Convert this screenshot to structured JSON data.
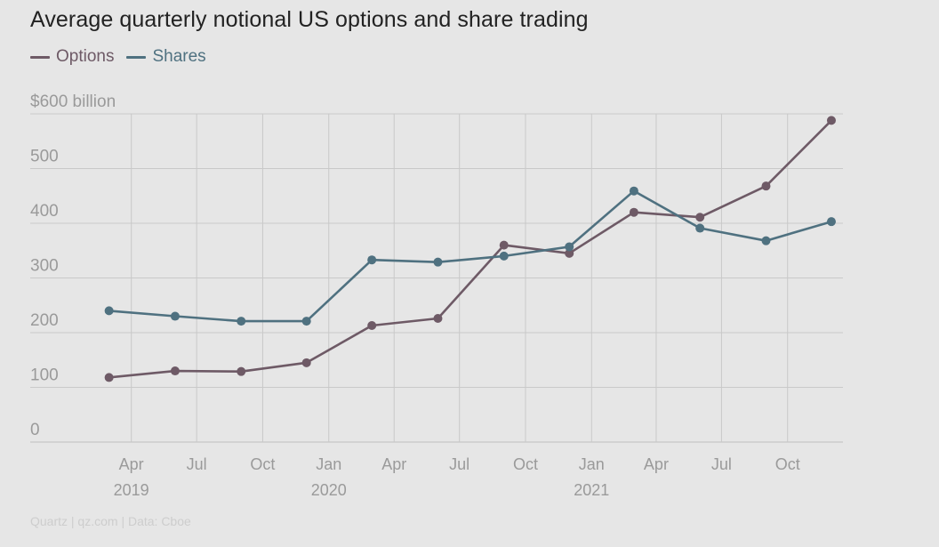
{
  "title": "Average quarterly notional US options and share trading",
  "colors": {
    "options": "#6e5a66",
    "shares": "#4f7180",
    "grid": "#c9c9c9",
    "axis_text": "#9a9a9a"
  },
  "legend": [
    {
      "label": "Options",
      "color": "#6e5a66"
    },
    {
      "label": "Shares",
      "color": "#4f7180"
    }
  ],
  "source": "Quartz | qz.com | Data: Cboe",
  "chart_data": {
    "type": "line",
    "title": "Average quarterly notional US options and share trading",
    "ylabel": "",
    "y_unit_label": "$600 billion",
    "ylim": [
      0,
      600
    ],
    "yticks": [
      0,
      100,
      200,
      300,
      400,
      500,
      600
    ],
    "ytick_labels": [
      "0",
      "100",
      "200",
      "300",
      "400",
      "500",
      "$600 billion"
    ],
    "xlim": [
      "2019-01-01",
      "2022-01-01"
    ],
    "xticks": [
      "2019-04-01",
      "2019-07-01",
      "2019-10-01",
      "2020-01-01",
      "2020-04-01",
      "2020-07-01",
      "2020-10-01",
      "2021-01-01",
      "2021-04-01",
      "2021-07-01",
      "2021-10-01"
    ],
    "xtick_labels": [
      "Apr",
      "Jul",
      "Oct",
      "Jan",
      "Apr",
      "Jul",
      "Oct",
      "Jan",
      "Apr",
      "Jul",
      "Oct"
    ],
    "year_labels": [
      {
        "label": "2019",
        "date": "2019-04-01"
      },
      {
        "label": "2020",
        "date": "2020-01-01"
      },
      {
        "label": "2021",
        "date": "2021-01-01"
      }
    ],
    "x": [
      "2019-03-01",
      "2019-06-01",
      "2019-09-01",
      "2019-12-01",
      "2020-03-01",
      "2020-06-01",
      "2020-09-01",
      "2020-12-01",
      "2021-03-01",
      "2021-06-01",
      "2021-09-01",
      "2021-12-01"
    ],
    "series": [
      {
        "name": "Options",
        "color": "#6e5a66",
        "values": [
          118,
          130,
          129,
          145,
          213,
          226,
          360,
          345,
          420,
          411,
          468,
          588
        ]
      },
      {
        "name": "Shares",
        "color": "#4f7180",
        "values": [
          240,
          230,
          221,
          221,
          333,
          329,
          340,
          357,
          459,
          391,
          368,
          403
        ]
      }
    ],
    "grid": true,
    "legend_position": "top-left"
  }
}
